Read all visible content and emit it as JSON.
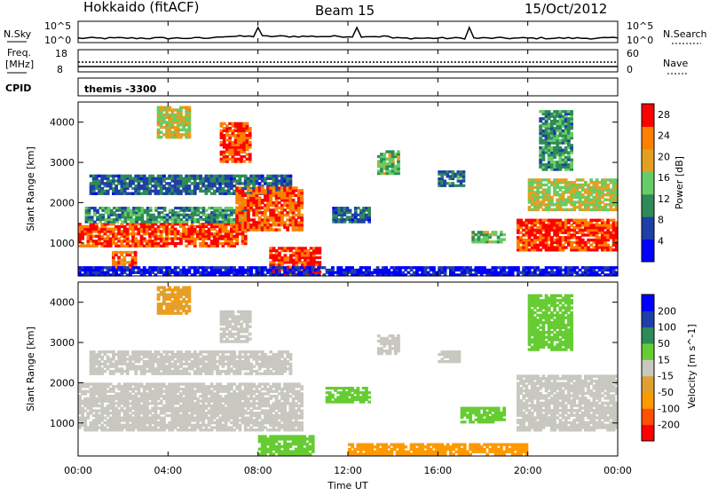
{
  "header": {
    "station": "Hokkaido (fitACF)",
    "beam": "Beam 15",
    "date": "15/Oct/2012"
  },
  "top_panels": {
    "nsky_label": "N.Sky",
    "nsky_ticks": [
      "10^5",
      "10^0"
    ],
    "nsearch_label": "N.Search",
    "nsearch_ticks": [
      "10^5",
      "10^0"
    ],
    "freq_label_line1": "Freq.",
    "freq_label_line2": "[MHz]",
    "freq_ticks": [
      "18",
      "8"
    ],
    "nave_label": "Nave",
    "nave_ticks": [
      "60",
      "0"
    ],
    "cpid_label": "CPID",
    "cpid_value": "themis -3300"
  },
  "chart_data": [
    {
      "type": "heatmap",
      "panel": "power",
      "ylabel": "Slant Range [km]",
      "yticks": [
        "4000",
        "3000",
        "2000",
        "1000"
      ],
      "ylim": [
        180,
        4500
      ],
      "xlim_hours": [
        0,
        24
      ],
      "colorbar_label": "Power [dB]",
      "colorbar_ticks": [
        "28",
        "24",
        "20",
        "16",
        "12",
        "8",
        "4"
      ],
      "colorbar_range": [
        0,
        30
      ],
      "colors": [
        "#0000ff",
        "#1f3fa8",
        "#2e8b57",
        "#66cc66",
        "#e3a020",
        "#ff7f00",
        "#ff0000"
      ],
      "regions": [
        {
          "t0": 0.0,
          "t1": 7.5,
          "r0": 900,
          "r1": 1500,
          "level": 26
        },
        {
          "t0": 0.3,
          "t1": 7.5,
          "r0": 1500,
          "r1": 1900,
          "level": 11
        },
        {
          "t0": 0.5,
          "t1": 9.5,
          "r0": 2200,
          "r1": 2700,
          "level": 8
        },
        {
          "t0": 1.5,
          "t1": 2.6,
          "r0": 300,
          "r1": 800,
          "level": 24
        },
        {
          "t0": 3.5,
          "t1": 5.0,
          "r0": 3600,
          "r1": 4400,
          "level": 18
        },
        {
          "t0": 6.3,
          "t1": 7.7,
          "r0": 3000,
          "r1": 4000,
          "level": 26
        },
        {
          "t0": 7.0,
          "t1": 10.0,
          "r0": 1300,
          "r1": 2400,
          "level": 25
        },
        {
          "t0": 8.5,
          "t1": 10.8,
          "r0": 200,
          "r1": 900,
          "level": 27
        },
        {
          "t0": 11.3,
          "t1": 13.0,
          "r0": 1500,
          "r1": 1900,
          "level": 8
        },
        {
          "t0": 13.3,
          "t1": 14.3,
          "r0": 2700,
          "r1": 3300,
          "level": 14
        },
        {
          "t0": 16.0,
          "t1": 17.2,
          "r0": 2400,
          "r1": 2800,
          "level": 9
        },
        {
          "t0": 17.5,
          "t1": 19.0,
          "r0": 1000,
          "r1": 1300,
          "level": 14
        },
        {
          "t0": 19.5,
          "t1": 24.0,
          "r0": 800,
          "r1": 1600,
          "level": 27
        },
        {
          "t0": 20.0,
          "t1": 24.0,
          "r0": 1800,
          "r1": 2600,
          "level": 17
        },
        {
          "t0": 20.5,
          "t1": 22.0,
          "r0": 2800,
          "r1": 4300,
          "level": 11
        },
        {
          "t0": 0.0,
          "t1": 24.0,
          "r0": 180,
          "r1": 420,
          "level": 3
        }
      ]
    },
    {
      "type": "heatmap",
      "panel": "velocity",
      "ylabel": "Slant Range [km]",
      "yticks": [
        "4000",
        "3000",
        "2000",
        "1000"
      ],
      "ylim": [
        180,
        4500
      ],
      "xlim_hours": [
        0,
        24
      ],
      "xlabel": "Time UT",
      "xticks": [
        "00:00",
        "04:00",
        "08:00",
        "12:00",
        "16:00",
        "20:00",
        "00:00"
      ],
      "colorbar_label": "Velocity [m s^-1]",
      "colorbar_ticks": [
        "200",
        "100",
        "50",
        "15",
        "-15",
        "-50",
        "-100",
        "-200"
      ],
      "colors": [
        "#ff0000",
        "#ff5000",
        "#ff9900",
        "#e0a030",
        "#c8c8c0",
        "#66cc33",
        "#2e8b57",
        "#1f3fa8",
        "#0000ff"
      ],
      "regions": [
        {
          "t0": 0.0,
          "t1": 10.0,
          "r0": 800,
          "r1": 2000,
          "v": 0
        },
        {
          "t0": 0.5,
          "t1": 9.5,
          "r0": 2200,
          "r1": 2800,
          "v": 0
        },
        {
          "t0": 3.5,
          "t1": 5.0,
          "r0": 3700,
          "r1": 4400,
          "v": -45
        },
        {
          "t0": 6.3,
          "t1": 7.7,
          "r0": 3000,
          "r1": 3800,
          "v": 0
        },
        {
          "t0": 8.0,
          "t1": 10.5,
          "r0": 200,
          "r1": 700,
          "v": 40
        },
        {
          "t0": 11.0,
          "t1": 13.0,
          "r0": 1500,
          "r1": 1900,
          "v": 35
        },
        {
          "t0": 13.3,
          "t1": 14.3,
          "r0": 2700,
          "r1": 3200,
          "v": 0
        },
        {
          "t0": 16.0,
          "t1": 17.0,
          "r0": 2500,
          "r1": 2800,
          "v": 0
        },
        {
          "t0": 17.0,
          "t1": 19.0,
          "r0": 1000,
          "r1": 1400,
          "v": 40
        },
        {
          "t0": 12.0,
          "t1": 20.0,
          "r0": 200,
          "r1": 500,
          "v": -60
        },
        {
          "t0": 19.5,
          "t1": 24.0,
          "r0": 800,
          "r1": 2200,
          "v": 0
        },
        {
          "t0": 20.0,
          "t1": 22.0,
          "r0": 2800,
          "r1": 4200,
          "v": 40
        }
      ]
    }
  ]
}
